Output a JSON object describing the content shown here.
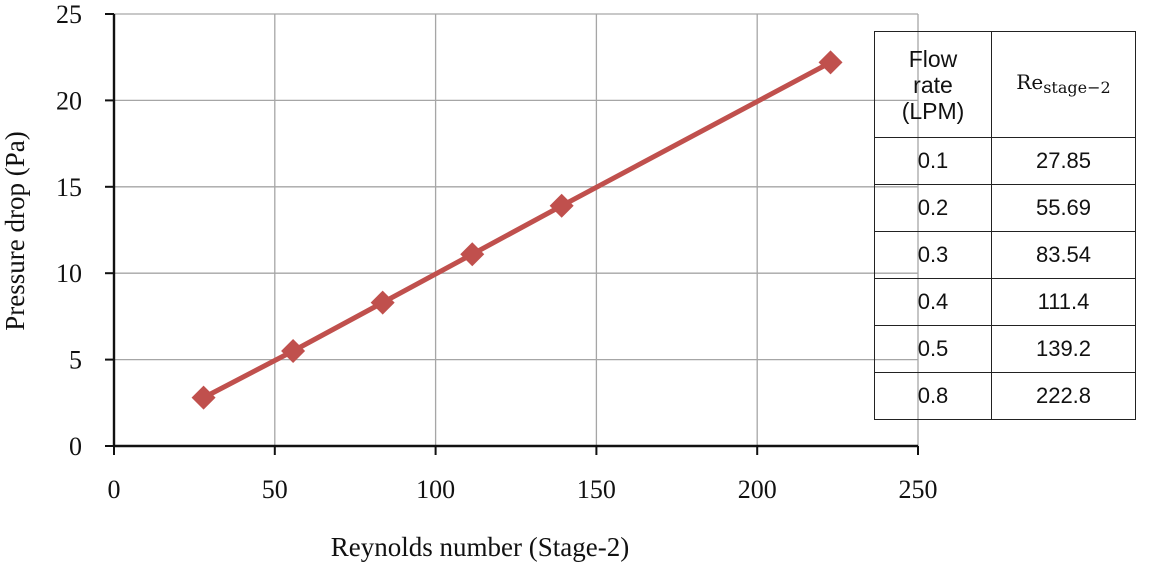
{
  "chart_data": {
    "type": "line",
    "title": "",
    "xlabel": "Reynolds number (Stage-2)",
    "ylabel": "Pressure drop (Pa)",
    "xlim": [
      0,
      250
    ],
    "ylim": [
      0,
      25
    ],
    "xticks": [
      0,
      50,
      100,
      150,
      200,
      250
    ],
    "yticks": [
      0,
      5,
      10,
      15,
      20,
      25
    ],
    "grid": true,
    "legend": "none",
    "series": [
      {
        "x": [
          27.85,
          55.69,
          83.54,
          111.4,
          139.2,
          222.8
        ],
        "y": [
          2.8,
          5.5,
          8.3,
          11.1,
          13.9,
          22.2
        ],
        "color": "#c0504d",
        "marker": "diamond"
      }
    ]
  },
  "table": {
    "header": {
      "col1": [
        "Flow",
        "rate",
        "(LPM)"
      ],
      "col2_base": "Re",
      "col2_sub": "stage−2"
    },
    "rows": [
      {
        "flow": "0.1",
        "re": "27.85"
      },
      {
        "flow": "0.2",
        "re": "55.69"
      },
      {
        "flow": "0.3",
        "re": "83.54"
      },
      {
        "flow": "0.4",
        "re": "111.4"
      },
      {
        "flow": "0.5",
        "re": "139.2"
      },
      {
        "flow": "0.8",
        "re": "222.8"
      }
    ]
  }
}
